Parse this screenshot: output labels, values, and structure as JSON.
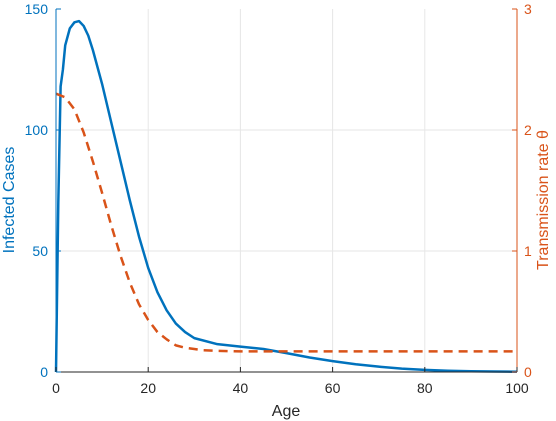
{
  "chart_data": {
    "type": "line",
    "xlabel": "Age",
    "ylabel_left": "Infected Cases",
    "ylabel_right": "Transmission rate θ",
    "xlim": [
      0,
      100
    ],
    "ylim_left": [
      0,
      150
    ],
    "ylim_right": [
      0,
      3
    ],
    "xticks": [
      0,
      20,
      40,
      60,
      80,
      100
    ],
    "yticks_left": [
      0,
      50,
      100,
      150
    ],
    "yticks_right": [
      0,
      1,
      2,
      3
    ],
    "grid": true,
    "colors": {
      "left": "#0072BD",
      "right": "#D95319",
      "grid": "#e6e6e6",
      "axis": "#262626"
    },
    "series": [
      {
        "axis": "left",
        "style": "solid",
        "x": [
          0,
          0.5,
          1,
          1.5,
          2,
          3,
          4,
          5,
          6,
          7,
          8,
          10,
          12,
          14,
          16,
          18,
          20,
          22,
          24,
          26,
          28,
          30,
          35,
          40,
          45,
          50,
          55,
          60,
          65,
          70,
          75,
          80,
          85,
          90,
          95,
          100
        ],
        "y": [
          0,
          70,
          118,
          125,
          135,
          142,
          144.5,
          145,
          143,
          139,
          133,
          119,
          103,
          87,
          71,
          56,
          43,
          33,
          25.5,
          20,
          16.5,
          14,
          11.5,
          10.5,
          9.5,
          7.8,
          6,
          4.5,
          3.2,
          2.2,
          1.4,
          0.9,
          0.5,
          0.3,
          0.2,
          0.1
        ]
      },
      {
        "axis": "right",
        "style": "dashed",
        "x": [
          0,
          2,
          4,
          6,
          8,
          10,
          12,
          14,
          16,
          18,
          20,
          22,
          24,
          26,
          28,
          30,
          32,
          35,
          40,
          45,
          50,
          60,
          70,
          80,
          90,
          100
        ],
        "y": [
          2.3,
          2.27,
          2.17,
          1.98,
          1.74,
          1.48,
          1.21,
          0.96,
          0.74,
          0.56,
          0.43,
          0.33,
          0.27,
          0.22,
          0.2,
          0.19,
          0.18,
          0.175,
          0.17,
          0.17,
          0.17,
          0.17,
          0.17,
          0.17,
          0.17,
          0.17
        ]
      }
    ]
  }
}
